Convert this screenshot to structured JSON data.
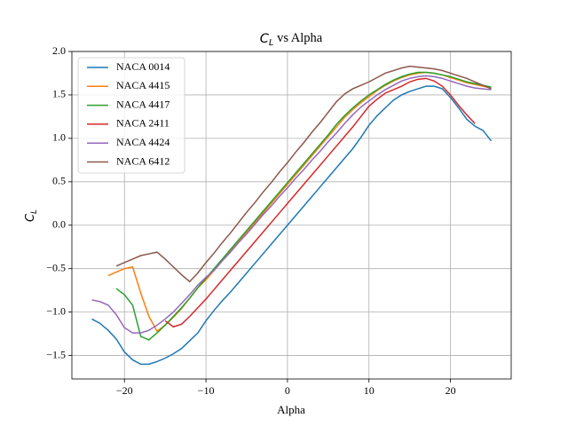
{
  "chart_data": {
    "type": "line",
    "title": [
      "C",
      "L",
      " vs Alpha"
    ],
    "xlabel": "Alpha",
    "ylabel": [
      "C",
      "L"
    ],
    "xlim": [
      -26.45,
      27.45
    ],
    "ylim": [
      -1.77,
      2.0
    ],
    "xticks": [
      {
        "value": -20,
        "label": "−20"
      },
      {
        "value": -10,
        "label": "−10"
      },
      0,
      10,
      20
    ],
    "yticks": [
      {
        "value": -1.5,
        "label": "−1.5"
      },
      {
        "value": -1,
        "label": "−1.0"
      },
      {
        "value": -0.5,
        "label": "−0.5"
      },
      {
        "value": 0,
        "label": "0.0"
      },
      0.5,
      {
        "value": 1,
        "label": "1.0"
      },
      1.5,
      {
        "value": 2,
        "label": "2.0"
      }
    ],
    "grid": true,
    "legend": "upper left",
    "series": [
      {
        "name": "NACA 0014",
        "color": "#1f77b4",
        "x": [
          -24,
          -23,
          -22,
          -21,
          -20,
          -19,
          -18,
          -17,
          -16,
          -15,
          -14,
          -13,
          -12,
          -11,
          -10,
          -9,
          -8,
          -7,
          -6,
          -5,
          -4,
          -3,
          -2,
          -1,
          0,
          1,
          2,
          3,
          4,
          5,
          6,
          7,
          8,
          9,
          10,
          11,
          12,
          13,
          14,
          15,
          16,
          17,
          18,
          19,
          20,
          21,
          22,
          23,
          24,
          25
        ],
        "values": [
          -1.08,
          -1.13,
          -1.21,
          -1.31,
          -1.46,
          -1.55,
          -1.6,
          -1.6,
          -1.57,
          -1.53,
          -1.48,
          -1.42,
          -1.33,
          -1.24,
          -1.1,
          -0.98,
          -0.87,
          -0.77,
          -0.66,
          -0.55,
          -0.44,
          -0.33,
          -0.22,
          -0.11,
          0,
          0.11,
          0.22,
          0.33,
          0.44,
          0.55,
          0.66,
          0.77,
          0.88,
          1.01,
          1.15,
          1.26,
          1.35,
          1.44,
          1.5,
          1.54,
          1.57,
          1.6,
          1.6,
          1.57,
          1.47,
          1.35,
          1.22,
          1.14,
          1.09,
          0.97
        ]
      },
      {
        "name": "NACA 4415",
        "color": "#ff7f0e",
        "x": [
          -22,
          -21,
          -20,
          -19,
          -18,
          -17,
          -16,
          -15,
          -14,
          -13,
          -12,
          -11,
          -10,
          -9,
          -8,
          -7,
          -6,
          -5,
          -4,
          -3,
          -2,
          -1,
          0,
          1,
          2,
          3,
          4,
          5,
          6,
          7,
          8,
          9,
          10,
          11,
          12,
          13,
          14,
          15,
          16,
          17,
          18,
          19,
          20,
          21,
          22,
          23,
          24,
          25
        ],
        "values": [
          -0.58,
          -0.54,
          -0.5,
          -0.48,
          -0.78,
          -1.05,
          -1.22,
          -1.15,
          -1.06,
          -0.96,
          -0.84,
          -0.72,
          -0.63,
          -0.52,
          -0.41,
          -0.3,
          -0.19,
          -0.08,
          0.03,
          0.14,
          0.25,
          0.36,
          0.47,
          0.58,
          0.69,
          0.8,
          0.91,
          1.02,
          1.13,
          1.24,
          1.33,
          1.41,
          1.48,
          1.55,
          1.61,
          1.66,
          1.7,
          1.73,
          1.75,
          1.76,
          1.75,
          1.73,
          1.7,
          1.67,
          1.64,
          1.62,
          1.6,
          1.58
        ]
      },
      {
        "name": "NACA 4417",
        "color": "#2ca02c",
        "x": [
          -21,
          -20,
          -19,
          -18,
          -17,
          -16,
          -15,
          -14,
          -13,
          -12,
          -11,
          -10,
          -9,
          -8,
          -7,
          -6,
          -5,
          -4,
          -3,
          -2,
          -1,
          0,
          1,
          2,
          3,
          4,
          5,
          6,
          7,
          8,
          9,
          10,
          11,
          12,
          13,
          14,
          15,
          16,
          17,
          18,
          19,
          20,
          21,
          22,
          23,
          24,
          25
        ],
        "values": [
          -0.73,
          -0.8,
          -0.92,
          -1.28,
          -1.32,
          -1.24,
          -1.15,
          -1.05,
          -0.95,
          -0.84,
          -0.72,
          -0.61,
          -0.5,
          -0.39,
          -0.28,
          -0.17,
          -0.06,
          0.05,
          0.16,
          0.27,
          0.38,
          0.49,
          0.6,
          0.71,
          0.82,
          0.93,
          1.04,
          1.16,
          1.26,
          1.35,
          1.43,
          1.5,
          1.56,
          1.62,
          1.67,
          1.71,
          1.74,
          1.76,
          1.76,
          1.75,
          1.73,
          1.71,
          1.68,
          1.65,
          1.63,
          1.61,
          1.59
        ]
      },
      {
        "name": "NACA 2411",
        "color": "#d62728",
        "x": [
          -15,
          -14,
          -13,
          -12,
          -11,
          -10,
          -9,
          -8,
          -7,
          -6,
          -5,
          -4,
          -3,
          -2,
          -1,
          0,
          1,
          2,
          3,
          4,
          5,
          6,
          7,
          8,
          9,
          10,
          11,
          12,
          13,
          14,
          15,
          16,
          17,
          18,
          19,
          20,
          21,
          22,
          23
        ],
        "values": [
          -1.1,
          -1.17,
          -1.14,
          -1.05,
          -0.95,
          -0.85,
          -0.74,
          -0.63,
          -0.52,
          -0.41,
          -0.3,
          -0.19,
          -0.08,
          0.03,
          0.14,
          0.25,
          0.36,
          0.47,
          0.58,
          0.69,
          0.8,
          0.91,
          1.02,
          1.13,
          1.25,
          1.37,
          1.45,
          1.52,
          1.56,
          1.6,
          1.65,
          1.68,
          1.69,
          1.66,
          1.6,
          1.5,
          1.38,
          1.27,
          1.17
        ]
      },
      {
        "name": "NACA 4424",
        "color": "#9467bd",
        "x": [
          -24,
          -23,
          -22,
          -21,
          -20,
          -19,
          -18,
          -17,
          -16,
          -15,
          -14,
          -13,
          -12,
          -11,
          -10,
          -9,
          -8,
          -7,
          -6,
          -5,
          -4,
          -3,
          -2,
          -1,
          0,
          1,
          2,
          3,
          4,
          5,
          6,
          7,
          8,
          9,
          10,
          11,
          12,
          13,
          14,
          15,
          16,
          17,
          18,
          19,
          20,
          21,
          22,
          23,
          24,
          25
        ],
        "values": [
          -0.86,
          -0.88,
          -0.92,
          -1.03,
          -1.18,
          -1.24,
          -1.24,
          -1.21,
          -1.15,
          -1.08,
          -1.0,
          -0.9,
          -0.8,
          -0.69,
          -0.6,
          -0.52,
          -0.41,
          -0.31,
          -0.2,
          -0.1,
          0.01,
          0.12,
          0.22,
          0.33,
          0.43,
          0.54,
          0.64,
          0.75,
          0.85,
          0.96,
          1.06,
          1.17,
          1.27,
          1.36,
          1.43,
          1.5,
          1.56,
          1.61,
          1.66,
          1.69,
          1.71,
          1.72,
          1.71,
          1.69,
          1.66,
          1.63,
          1.6,
          1.58,
          1.57,
          1.56
        ]
      },
      {
        "name": "NACA 6412",
        "color": "#8c564b",
        "x": [
          -21,
          -20,
          -19,
          -18,
          -17,
          -16,
          -15,
          -14,
          -13,
          -12,
          -11,
          -10,
          -9,
          -8,
          -7,
          -6,
          -5,
          -4,
          -3,
          -2,
          -1,
          0,
          1,
          2,
          3,
          4,
          5,
          6,
          7,
          8,
          9,
          10,
          11,
          12,
          13,
          14,
          15,
          16,
          17,
          18,
          19,
          20,
          21,
          22,
          23,
          24,
          25
        ],
        "values": [
          -0.47,
          -0.43,
          -0.39,
          -0.35,
          -0.33,
          -0.31,
          -0.39,
          -0.48,
          -0.57,
          -0.65,
          -0.55,
          -0.43,
          -0.32,
          -0.2,
          -0.09,
          0.03,
          0.15,
          0.26,
          0.38,
          0.49,
          0.61,
          0.72,
          0.84,
          0.95,
          1.07,
          1.18,
          1.3,
          1.42,
          1.51,
          1.57,
          1.61,
          1.65,
          1.7,
          1.75,
          1.78,
          1.81,
          1.83,
          1.82,
          1.81,
          1.8,
          1.78,
          1.75,
          1.72,
          1.69,
          1.65,
          1.61,
          1.57
        ]
      }
    ]
  }
}
